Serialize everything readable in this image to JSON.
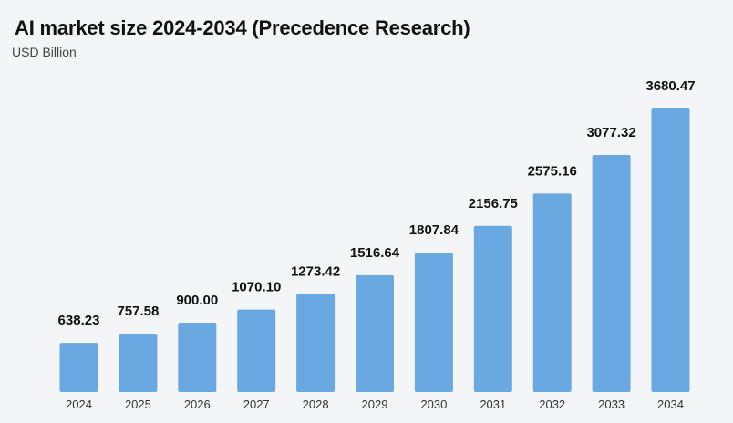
{
  "chart_data": {
    "type": "bar",
    "title": "AI market size 2024-2034 (Precedence Research)",
    "subtitle": "USD Billion",
    "categories": [
      "2024",
      "2025",
      "2026",
      "2027",
      "2028",
      "2029",
      "2030",
      "2031",
      "2032",
      "2033",
      "2034"
    ],
    "values": [
      638.23,
      757.58,
      900.0,
      1070.1,
      1273.42,
      1516.64,
      1807.84,
      2156.75,
      2575.16,
      3077.32,
      3680.47
    ],
    "data_labels": [
      "638.23",
      "757.58",
      "900.00",
      "1070.10",
      "1273.42",
      "1516.64",
      "1807.84",
      "2156.75",
      "2575.16",
      "3077.32",
      "3680.47"
    ],
    "ylim": [
      0,
      4000
    ],
    "grid": false,
    "bar_color": "#6aa8e2",
    "background": "#f4f5f7"
  }
}
